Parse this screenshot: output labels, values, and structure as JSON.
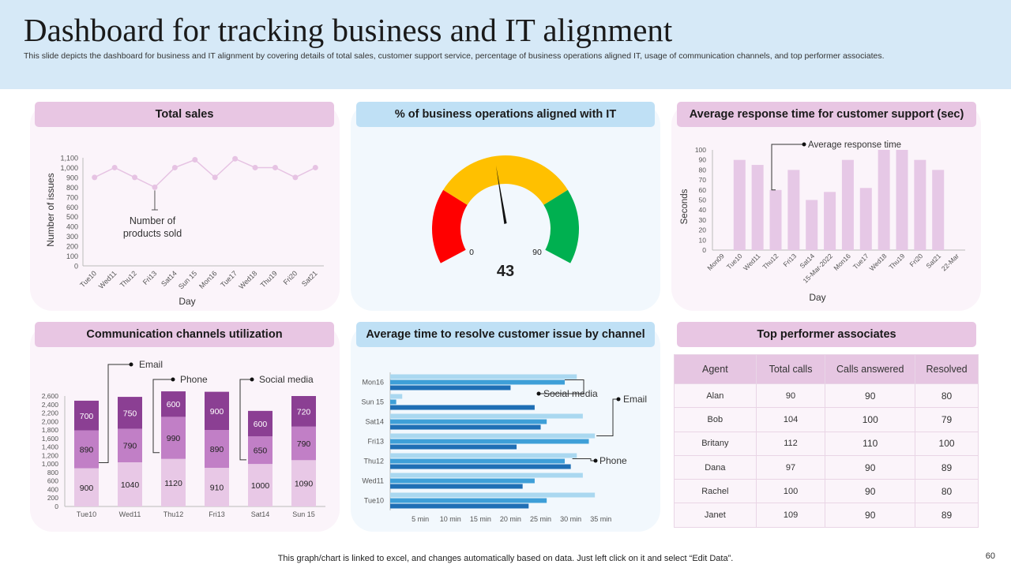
{
  "header": {
    "title": "Dashboard for tracking business and IT alignment",
    "subtitle": "This slide depicts the dashboard for business and IT alignment by covering details of total sales, customer support service, percentage of business operations aligned IT, usage of communication channels, and top performer associates."
  },
  "panels": {
    "total_sales": "Total sales",
    "aligned": "% of business operations aligned with IT",
    "response": "Average response time for customer support (sec)",
    "channels": "Communication  channels utilization",
    "resolve": "Average time to resolve customer issue by channel",
    "performers": "Top performer associates"
  },
  "colors": {
    "header_bg": "#d6e9f7",
    "pink_title": "#e8c6e3",
    "blue_title": "#bfe0f5",
    "gauge_red": "#ff0000",
    "gauge_yellow": "#ffc000",
    "gauge_green": "#00b050"
  },
  "chart_data": [
    {
      "id": "total-sales",
      "type": "line",
      "categories": [
        "Tue10",
        "Wed11",
        "Thu12",
        "Fri13",
        "Sat14",
        "Sun 15",
        "Mon16",
        "Tue17",
        "Wed18",
        "Thu19",
        "Fri20",
        "Sat21"
      ],
      "values": [
        900,
        1000,
        900,
        800,
        1000,
        1080,
        900,
        1090,
        1000,
        1000,
        900,
        1000
      ],
      "ylim": [
        0,
        1100
      ],
      "yticks": [
        "0",
        "100",
        "200",
        "300",
        "400",
        "500",
        "600",
        "700",
        "800",
        "900",
        "1,000",
        "1,100"
      ],
      "xlabel": "Day",
      "ylabel": "Number of issues",
      "annotation": "Number of products sold"
    },
    {
      "id": "gauge",
      "type": "gauge",
      "value": 43,
      "min": 0,
      "max": 90,
      "value_label": "43",
      "min_label": "0",
      "max_label": "90"
    },
    {
      "id": "response-time",
      "type": "bar",
      "categories": [
        "Mon09",
        "Tue10",
        "Wed11",
        "Thu12",
        "Fri13",
        "Sat14",
        "15-Mar-2022",
        "Mon16",
        "Tue17",
        "Wed18",
        "Thu19",
        "Fri20",
        "Sat21",
        "22-Mar"
      ],
      "values": [
        null,
        90,
        85,
        60,
        80,
        50,
        58,
        90,
        62,
        100,
        100,
        90,
        80,
        null
      ],
      "ylim": [
        0,
        100
      ],
      "yticks": [
        "0",
        "10",
        "20",
        "30",
        "40",
        "50",
        "60",
        "70",
        "80",
        "90",
        "100"
      ],
      "xlabel": "Day",
      "ylabel": "Seconds",
      "legend": "Average response time"
    },
    {
      "id": "channels",
      "type": "bar",
      "stacked": true,
      "categories": [
        "Tue10",
        "Wed11",
        "Thu12",
        "Fri13",
        "Sat14",
        "Sun 15"
      ],
      "series": [
        {
          "name": "Phone",
          "values": [
            900,
            1040,
            1120,
            910,
            1000,
            1090
          ]
        },
        {
          "name": "Email",
          "values": [
            890,
            790,
            990,
            890,
            650,
            790
          ]
        },
        {
          "name": "Social media",
          "values": [
            700,
            750,
            600,
            900,
            600,
            720
          ]
        }
      ],
      "ylim": [
        0,
        2600
      ],
      "yticks": [
        "0",
        "200",
        "400",
        "600",
        "800",
        "1,000",
        "1,200",
        "1,400",
        "1,600",
        "1,800",
        "2,000",
        "2,200",
        "2,400",
        "2,600"
      ]
    },
    {
      "id": "resolve-time",
      "type": "bar",
      "orientation": "horizontal",
      "categories": [
        "Mon16",
        "Sun 15",
        "Sat14",
        "Fri13",
        "Thu12",
        "Wed11",
        "Tue10"
      ],
      "series": [
        {
          "name": "Email",
          "values": [
            31,
            2,
            32,
            34,
            31,
            32,
            34
          ]
        },
        {
          "name": "Social media",
          "values": [
            29,
            1,
            26,
            33,
            29,
            24,
            26
          ]
        },
        {
          "name": "Phone",
          "values": [
            20,
            24,
            25,
            21,
            30,
            22,
            23
          ]
        }
      ],
      "xlim": [
        0,
        37
      ],
      "xticks": [
        "5 min",
        "10 min",
        "15 min",
        "20 min",
        "25 min",
        "30 min",
        "35 min"
      ]
    }
  ],
  "performers": {
    "headers": [
      "Agent",
      "Total calls",
      "Calls answered",
      "Resolved"
    ],
    "rows": [
      [
        "Alan",
        "90",
        "90",
        "80"
      ],
      [
        "Bob",
        "104",
        "100",
        "79"
      ],
      [
        "Britany",
        "112",
        "110",
        "100"
      ],
      [
        "Dana",
        "97",
        "90",
        "89"
      ],
      [
        "Rachel",
        "100",
        "90",
        "80"
      ],
      [
        "Janet",
        "109",
        "90",
        "89"
      ]
    ]
  },
  "footer": "This graph/chart is linked to excel,  and changes automatically based on data. Just left click on it and select “Edit Data”.",
  "page_number": "60"
}
